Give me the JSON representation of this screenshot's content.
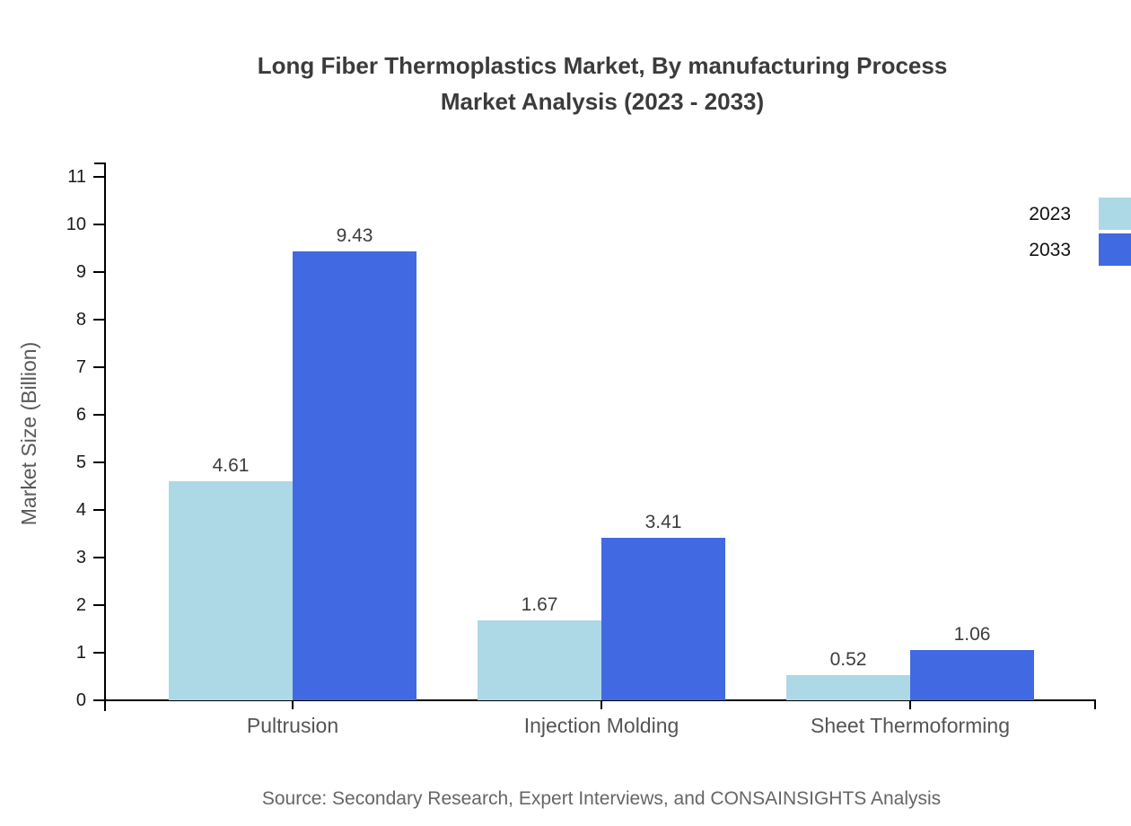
{
  "title": {
    "lines": [
      "Long Fiber Thermoplastics Market, By manufacturing Process",
      "Market Analysis (2023 - 2033)"
    ]
  },
  "source": "Source: Secondary Research, Expert Interviews, and CONSAINSIGHTS Analysis",
  "chart_data": {
    "type": "bar",
    "title": "Long Fiber Thermoplastics Market, By manufacturing Process Market Analysis (2023 - 2033)",
    "categories": [
      "Pultrusion",
      "Injection Molding",
      "Sheet Thermoforming"
    ],
    "series": [
      {
        "name": "2023",
        "color": "#ADD8E6",
        "values": [
          4.61,
          1.67,
          0.52
        ]
      },
      {
        "name": "2033",
        "color": "#4169E1",
        "values": [
          9.43,
          3.41,
          1.06
        ]
      }
    ],
    "xlabel": "",
    "ylabel": "Market Size (Billion)",
    "ylim": [
      0,
      11
    ],
    "ytick_step": 1,
    "grid": false,
    "legend_position": "top-right",
    "value_labels": true,
    "axis_color": "#000000",
    "text_color": "#3d3d3d"
  }
}
